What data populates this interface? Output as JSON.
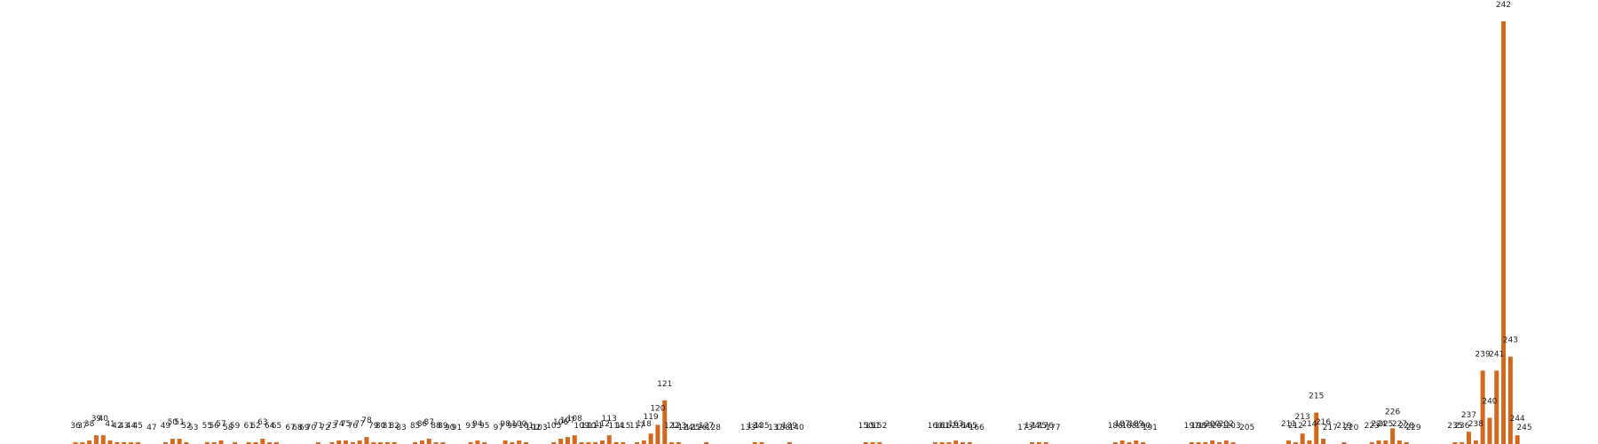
{
  "chart_data": {
    "type": "bar",
    "title": "",
    "xlabel": "",
    "ylabel": "",
    "grid": false,
    "color": "#d2691e",
    "x_range": [
      36,
      245
    ],
    "ylim": [
      0,
      242
    ],
    "points": [
      {
        "x": 36,
        "value": 1
      },
      {
        "x": 37,
        "value": 1
      },
      {
        "x": 38,
        "value": 2
      },
      {
        "x": 39,
        "value": 5
      },
      {
        "x": 40,
        "value": 5
      },
      {
        "x": 41,
        "value": 2
      },
      {
        "x": 42,
        "value": 1
      },
      {
        "x": 43,
        "value": 1
      },
      {
        "x": 44,
        "value": 1
      },
      {
        "x": 45,
        "value": 1
      },
      {
        "x": 47,
        "value": 0
      },
      {
        "x": 49,
        "value": 1
      },
      {
        "x": 50,
        "value": 3
      },
      {
        "x": 51,
        "value": 3
      },
      {
        "x": 52,
        "value": 1
      },
      {
        "x": 53,
        "value": 0
      },
      {
        "x": 55,
        "value": 1
      },
      {
        "x": 56,
        "value": 1
      },
      {
        "x": 57,
        "value": 2
      },
      {
        "x": 58,
        "value": 0
      },
      {
        "x": 59,
        "value": 1
      },
      {
        "x": 61,
        "value": 1
      },
      {
        "x": 62,
        "value": 1
      },
      {
        "x": 63,
        "value": 3
      },
      {
        "x": 64,
        "value": 1
      },
      {
        "x": 65,
        "value": 1
      },
      {
        "x": 67,
        "value": 0
      },
      {
        "x": 68,
        "value": 0
      },
      {
        "x": 69,
        "value": 0
      },
      {
        "x": 70,
        "value": 0
      },
      {
        "x": 71,
        "value": 1
      },
      {
        "x": 72,
        "value": 0
      },
      {
        "x": 73,
        "value": 1
      },
      {
        "x": 74,
        "value": 2
      },
      {
        "x": 75,
        "value": 2
      },
      {
        "x": 76,
        "value": 1
      },
      {
        "x": 77,
        "value": 2
      },
      {
        "x": 78,
        "value": 4
      },
      {
        "x": 79,
        "value": 1
      },
      {
        "x": 80,
        "value": 1
      },
      {
        "x": 81,
        "value": 1
      },
      {
        "x": 82,
        "value": 1
      },
      {
        "x": 83,
        "value": 0
      },
      {
        "x": 85,
        "value": 1
      },
      {
        "x": 86,
        "value": 2
      },
      {
        "x": 87,
        "value": 3
      },
      {
        "x": 88,
        "value": 1
      },
      {
        "x": 89,
        "value": 1
      },
      {
        "x": 90,
        "value": 0
      },
      {
        "x": 91,
        "value": 0
      },
      {
        "x": 93,
        "value": 1
      },
      {
        "x": 94,
        "value": 2
      },
      {
        "x": 95,
        "value": 1
      },
      {
        "x": 97,
        "value": 0
      },
      {
        "x": 98,
        "value": 2
      },
      {
        "x": 99,
        "value": 1
      },
      {
        "x": 100,
        "value": 2
      },
      {
        "x": 101,
        "value": 1
      },
      {
        "x": 102,
        "value": 0
      },
      {
        "x": 103,
        "value": 0
      },
      {
        "x": 105,
        "value": 1
      },
      {
        "x": 106,
        "value": 3
      },
      {
        "x": 107,
        "value": 4
      },
      {
        "x": 108,
        "value": 5
      },
      {
        "x": 109,
        "value": 1
      },
      {
        "x": 110,
        "value": 1
      },
      {
        "x": 111,
        "value": 1
      },
      {
        "x": 112,
        "value": 2
      },
      {
        "x": 113,
        "value": 5
      },
      {
        "x": 114,
        "value": 1
      },
      {
        "x": 115,
        "value": 1
      },
      {
        "x": 117,
        "value": 1
      },
      {
        "x": 118,
        "value": 2
      },
      {
        "x": 119,
        "value": 6
      },
      {
        "x": 120,
        "value": 11
      },
      {
        "x": 121,
        "value": 25
      },
      {
        "x": 122,
        "value": 1
      },
      {
        "x": 123,
        "value": 1
      },
      {
        "x": 124,
        "value": 0
      },
      {
        "x": 125,
        "value": 0
      },
      {
        "x": 126,
        "value": 0
      },
      {
        "x": 127,
        "value": 1
      },
      {
        "x": 128,
        "value": 0
      },
      {
        "x": 133,
        "value": 0
      },
      {
        "x": 134,
        "value": 1
      },
      {
        "x": 135,
        "value": 1
      },
      {
        "x": 137,
        "value": 0
      },
      {
        "x": 138,
        "value": 0
      },
      {
        "x": 139,
        "value": 1
      },
      {
        "x": 140,
        "value": 0
      },
      {
        "x": 150,
        "value": 1
      },
      {
        "x": 151,
        "value": 1
      },
      {
        "x": 152,
        "value": 1
      },
      {
        "x": 160,
        "value": 1
      },
      {
        "x": 161,
        "value": 1
      },
      {
        "x": 162,
        "value": 1
      },
      {
        "x": 163,
        "value": 2
      },
      {
        "x": 164,
        "value": 1
      },
      {
        "x": 165,
        "value": 1
      },
      {
        "x": 166,
        "value": 0
      },
      {
        "x": 173,
        "value": 0
      },
      {
        "x": 174,
        "value": 1
      },
      {
        "x": 175,
        "value": 1
      },
      {
        "x": 176,
        "value": 1
      },
      {
        "x": 177,
        "value": 0
      },
      {
        "x": 186,
        "value": 1
      },
      {
        "x": 187,
        "value": 2
      },
      {
        "x": 188,
        "value": 1
      },
      {
        "x": 189,
        "value": 2
      },
      {
        "x": 190,
        "value": 1
      },
      {
        "x": 191,
        "value": 0
      },
      {
        "x": 197,
        "value": 1
      },
      {
        "x": 198,
        "value": 1
      },
      {
        "x": 199,
        "value": 1
      },
      {
        "x": 200,
        "value": 2
      },
      {
        "x": 201,
        "value": 1
      },
      {
        "x": 202,
        "value": 2
      },
      {
        "x": 203,
        "value": 1
      },
      {
        "x": 205,
        "value": 0
      },
      {
        "x": 211,
        "value": 2
      },
      {
        "x": 212,
        "value": 1
      },
      {
        "x": 213,
        "value": 6
      },
      {
        "x": 214,
        "value": 2
      },
      {
        "x": 215,
        "value": 18
      },
      {
        "x": 216,
        "value": 3
      },
      {
        "x": 217,
        "value": 0
      },
      {
        "x": 219,
        "value": 1
      },
      {
        "x": 220,
        "value": 0
      },
      {
        "x": 223,
        "value": 1
      },
      {
        "x": 224,
        "value": 2
      },
      {
        "x": 225,
        "value": 2
      },
      {
        "x": 226,
        "value": 9
      },
      {
        "x": 227,
        "value": 2
      },
      {
        "x": 228,
        "value": 1
      },
      {
        "x": 229,
        "value": 0
      },
      {
        "x": 235,
        "value": 1
      },
      {
        "x": 236,
        "value": 1
      },
      {
        "x": 237,
        "value": 7
      },
      {
        "x": 238,
        "value": 2
      },
      {
        "x": 239,
        "value": 42
      },
      {
        "x": 240,
        "value": 15
      },
      {
        "x": 241,
        "value": 42
      },
      {
        "x": 242,
        "value": 242
      },
      {
        "x": 243,
        "value": 50
      },
      {
        "x": 244,
        "value": 5
      },
      {
        "x": 245,
        "value": 0
      }
    ]
  }
}
